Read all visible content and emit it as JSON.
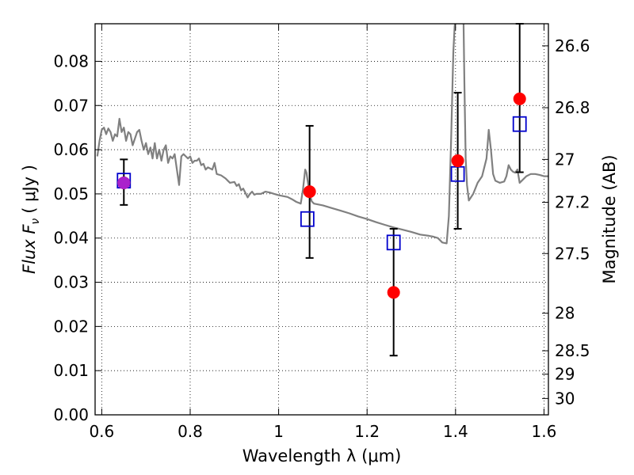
{
  "chart_data": {
    "type": "scatter",
    "xlabel": "Wavelength  λ (μm)",
    "ylabel": "Flux  F",
    "ylabel_sub": "ν",
    "ylabel_unit": "( μJy )",
    "y2label": "Magnitude (AB)",
    "xlim": [
      0.585,
      1.61
    ],
    "ylim": [
      0.0,
      0.0885
    ],
    "grid": true,
    "x_ticks": [
      0.6,
      0.8,
      1.0,
      1.2,
      1.4,
      1.6
    ],
    "x_tick_labels": [
      "0.6",
      "0.8",
      "1",
      "1.2",
      "1.4",
      "1.6"
    ],
    "y_ticks": [
      0.0,
      0.01,
      0.02,
      0.03,
      0.04,
      0.05,
      0.06,
      0.07,
      0.08
    ],
    "y_tick_labels": [
      "0.00",
      "0.01",
      "0.02",
      "0.03",
      "0.04",
      "0.05",
      "0.06",
      "0.07",
      "0.08"
    ],
    "y2_ticks": [
      {
        "label": "26.6",
        "flux": 0.0835
      },
      {
        "label": "26.8",
        "flux": 0.0695
      },
      {
        "label": "27",
        "flux": 0.0578
      },
      {
        "label": "27.2",
        "flux": 0.0481
      },
      {
        "label": "27.5",
        "flux": 0.0365
      },
      {
        "label": "28",
        "flux": 0.023
      },
      {
        "label": "28.5",
        "flux": 0.0145
      },
      {
        "label": "29",
        "flux": 0.0092
      },
      {
        "label": "30",
        "flux": 0.0037
      }
    ],
    "series": [
      {
        "kind": "line",
        "color": "#808080",
        "points": [
          [
            0.59,
            0.0585
          ],
          [
            0.595,
            0.062
          ],
          [
            0.6,
            0.0645
          ],
          [
            0.605,
            0.065
          ],
          [
            0.61,
            0.0635
          ],
          [
            0.615,
            0.0648
          ],
          [
            0.62,
            0.064
          ],
          [
            0.625,
            0.062
          ],
          [
            0.63,
            0.0635
          ],
          [
            0.635,
            0.063
          ],
          [
            0.64,
            0.067
          ],
          [
            0.645,
            0.064
          ],
          [
            0.65,
            0.065
          ],
          [
            0.655,
            0.062
          ],
          [
            0.66,
            0.064
          ],
          [
            0.665,
            0.0635
          ],
          [
            0.67,
            0.061
          ],
          [
            0.675,
            0.0625
          ],
          [
            0.68,
            0.064
          ],
          [
            0.685,
            0.0645
          ],
          [
            0.69,
            0.062
          ],
          [
            0.695,
            0.06
          ],
          [
            0.7,
            0.0615
          ],
          [
            0.705,
            0.059
          ],
          [
            0.71,
            0.0605
          ],
          [
            0.715,
            0.058
          ],
          [
            0.72,
            0.0615
          ],
          [
            0.725,
            0.058
          ],
          [
            0.73,
            0.06
          ],
          [
            0.735,
            0.0575
          ],
          [
            0.74,
            0.06
          ],
          [
            0.745,
            0.061
          ],
          [
            0.75,
            0.057
          ],
          [
            0.755,
            0.0585
          ],
          [
            0.76,
            0.058
          ],
          [
            0.765,
            0.059
          ],
          [
            0.77,
            0.0555
          ],
          [
            0.775,
            0.052
          ],
          [
            0.78,
            0.0585
          ],
          [
            0.785,
            0.059
          ],
          [
            0.79,
            0.0585
          ],
          [
            0.795,
            0.058
          ],
          [
            0.8,
            0.0585
          ],
          [
            0.805,
            0.057
          ],
          [
            0.81,
            0.0575
          ],
          [
            0.815,
            0.0575
          ],
          [
            0.82,
            0.058
          ],
          [
            0.825,
            0.0565
          ],
          [
            0.83,
            0.0568
          ],
          [
            0.835,
            0.0555
          ],
          [
            0.84,
            0.056
          ],
          [
            0.85,
            0.0555
          ],
          [
            0.855,
            0.057
          ],
          [
            0.86,
            0.0545
          ],
          [
            0.87,
            0.0542
          ],
          [
            0.88,
            0.0535
          ],
          [
            0.885,
            0.053
          ],
          [
            0.89,
            0.0525
          ],
          [
            0.9,
            0.0527
          ],
          [
            0.905,
            0.0518
          ],
          [
            0.91,
            0.0522
          ],
          [
            0.915,
            0.0508
          ],
          [
            0.92,
            0.0512
          ],
          [
            0.925,
            0.0502
          ],
          [
            0.93,
            0.0492
          ],
          [
            0.935,
            0.05
          ],
          [
            0.94,
            0.0505
          ],
          [
            0.945,
            0.0498
          ],
          [
            0.95,
            0.05
          ],
          [
            0.96,
            0.05
          ],
          [
            0.97,
            0.0505
          ],
          [
            0.98,
            0.0503
          ],
          [
            0.99,
            0.05
          ],
          [
            1.0,
            0.0497
          ],
          [
            1.01,
            0.0495
          ],
          [
            1.02,
            0.0493
          ],
          [
            1.03,
            0.0488
          ],
          [
            1.04,
            0.0482
          ],
          [
            1.05,
            0.0478
          ],
          [
            1.055,
            0.051
          ],
          [
            1.06,
            0.0555
          ],
          [
            1.063,
            0.0548
          ],
          [
            1.07,
            0.05
          ],
          [
            1.075,
            0.0483
          ],
          [
            1.08,
            0.0478
          ],
          [
            1.1,
            0.0474
          ],
          [
            1.12,
            0.0468
          ],
          [
            1.14,
            0.0462
          ],
          [
            1.16,
            0.0456
          ],
          [
            1.18,
            0.0449
          ],
          [
            1.2,
            0.0443
          ],
          [
            1.22,
            0.0436
          ],
          [
            1.24,
            0.043
          ],
          [
            1.26,
            0.0424
          ],
          [
            1.28,
            0.0419
          ],
          [
            1.3,
            0.0414
          ],
          [
            1.32,
            0.0408
          ],
          [
            1.34,
            0.0405
          ],
          [
            1.35,
            0.0403
          ],
          [
            1.36,
            0.04
          ],
          [
            1.37,
            0.039
          ],
          [
            1.38,
            0.0388
          ],
          [
            1.385,
            0.045
          ],
          [
            1.39,
            0.062
          ],
          [
            1.395,
            0.082
          ],
          [
            1.398,
            0.088
          ],
          [
            1.4,
            0.089
          ],
          [
            1.41,
            0.089
          ],
          [
            1.415,
            0.089
          ],
          [
            1.418,
            0.089
          ],
          [
            1.42,
            0.075
          ],
          [
            1.423,
            0.058
          ],
          [
            1.426,
            0.052
          ],
          [
            1.43,
            0.0485
          ],
          [
            1.44,
            0.05
          ],
          [
            1.45,
            0.0525
          ],
          [
            1.46,
            0.054
          ],
          [
            1.47,
            0.058
          ],
          [
            1.475,
            0.0645
          ],
          [
            1.48,
            0.06
          ],
          [
            1.485,
            0.0545
          ],
          [
            1.49,
            0.053
          ],
          [
            1.5,
            0.0525
          ],
          [
            1.51,
            0.0528
          ],
          [
            1.515,
            0.054
          ],
          [
            1.52,
            0.0565
          ],
          [
            1.525,
            0.0555
          ],
          [
            1.53,
            0.055
          ],
          [
            1.535,
            0.0548
          ],
          [
            1.54,
            0.0555
          ],
          [
            1.545,
            0.0525
          ],
          [
            1.55,
            0.053
          ],
          [
            1.56,
            0.054
          ],
          [
            1.57,
            0.0545
          ],
          [
            1.58,
            0.0545
          ],
          [
            1.59,
            0.0543
          ],
          [
            1.6,
            0.054
          ],
          [
            1.61,
            0.054
          ]
        ]
      },
      {
        "kind": "markers",
        "marker": "square",
        "color": "#0000cc",
        "points": [
          [
            0.65,
            0.053
          ],
          [
            1.065,
            0.0443
          ],
          [
            1.26,
            0.039
          ],
          [
            1.405,
            0.0545
          ],
          [
            1.545,
            0.0658
          ]
        ]
      },
      {
        "kind": "markers",
        "marker": "circle",
        "color": "#ff0000",
        "points": [
          [
            0.65,
            0.0525
          ],
          [
            1.07,
            0.0505
          ],
          [
            1.26,
            0.0277
          ],
          [
            1.405,
            0.0575
          ],
          [
            1.545,
            0.0715
          ]
        ],
        "errors": [
          [
            0.0475,
            0.0578
          ],
          [
            0.0355,
            0.0654
          ],
          [
            0.0134,
            0.0421
          ],
          [
            0.0421,
            0.0729
          ],
          [
            0.0549,
            0.0885
          ]
        ]
      },
      {
        "kind": "markers",
        "marker": "circle",
        "color": "#aa22cc",
        "points": [
          [
            0.65,
            0.0525
          ]
        ]
      }
    ]
  }
}
